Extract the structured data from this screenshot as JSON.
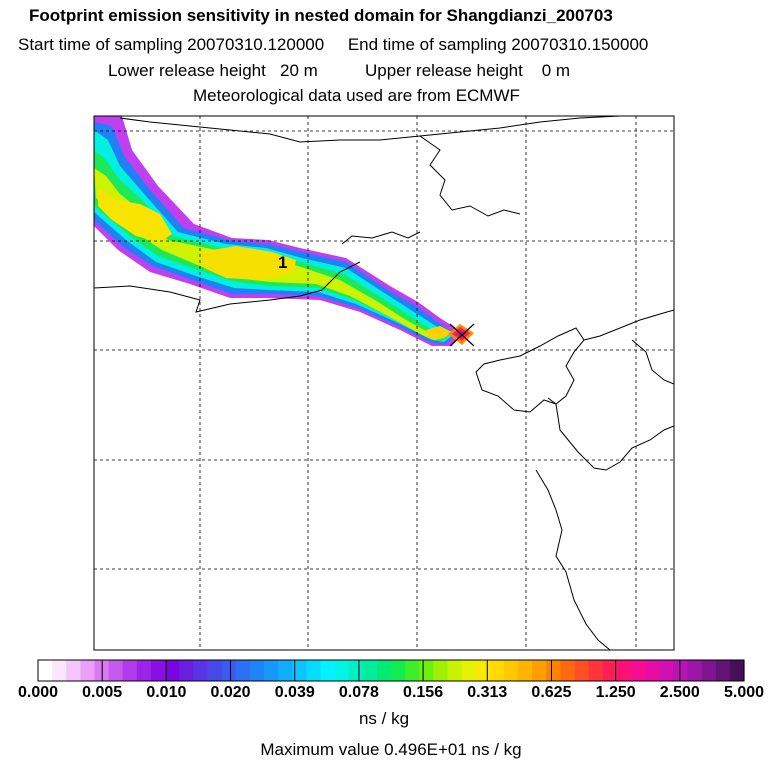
{
  "header": {
    "title": "Footprint emission sensitivity in nested domain for Shangdianzi_200703",
    "sampling": "Start time of sampling 20070310.120000     End time of sampling 20070310.150000",
    "release": "Lower release height   20 m          Upper release height    0 m",
    "met": "Meteorological data used are from ECMWF"
  },
  "chart_data": {
    "type": "heatmap",
    "title": "Footprint emission sensitivity in nested domain for Shangdianzi_200703",
    "contour_label": "1",
    "station_marker": "Shangdianzi",
    "colorbar": {
      "tick_labels": [
        "0.000",
        "0.005",
        "0.010",
        "0.020",
        "0.039",
        "0.078",
        "0.156",
        "0.313",
        "0.625",
        "1.250",
        "2.500",
        "5.000"
      ],
      "tick_values": [
        0.0,
        0.005,
        0.01,
        0.02,
        0.039,
        0.078,
        0.156,
        0.313,
        0.625,
        1.25,
        2.5,
        5.0
      ],
      "colors": [
        "#ffffff",
        "#fce6ff",
        "#f4c6fb",
        "#e9a0f6",
        "#d97af1",
        "#c659ee",
        "#b13be9",
        "#9d23e6",
        "#8a10e2",
        "#7a05df",
        "#6a1ee0",
        "#5a33e4",
        "#4848e8",
        "#3a5cee",
        "#2c70f3",
        "#1f84f7",
        "#1798fa",
        "#10aefc",
        "#0bc4fd",
        "#06dbfe",
        "#00f1ff",
        "#00f5e6",
        "#00f0c4",
        "#00ed9e",
        "#00eb76",
        "#10ec52",
        "#3bef2b",
        "#6cf10f",
        "#9ef104",
        "#c8f200",
        "#e7f200",
        "#f6ea00",
        "#ffdb00",
        "#ffc800",
        "#ffb400",
        "#ff9e00",
        "#ff8300",
        "#ff6a10",
        "#ff5025",
        "#ff353b",
        "#ff1f55",
        "#ff1075",
        "#f80c92",
        "#e70ca6",
        "#d210b2",
        "#b914b4",
        "#9d16a8",
        "#7f1690",
        "#621374",
        "#480e58"
      ]
    },
    "units": "ns / kg",
    "maximum_text": "Maximum value  0.496E+01 ns / kg"
  }
}
